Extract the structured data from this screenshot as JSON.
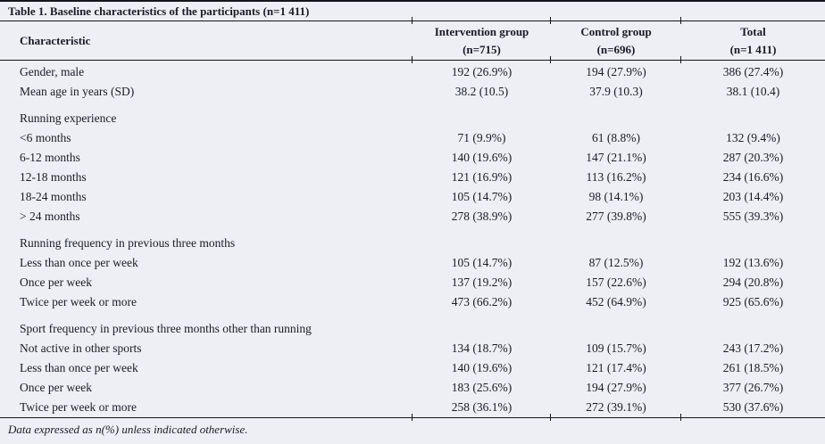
{
  "page": {
    "background_color": "#edeff5",
    "text_color": "#1b1b26",
    "rule_color": "#15151d"
  },
  "table": {
    "title": "Table 1. Baseline characteristics of the participants (n=1 411)",
    "columns": [
      {
        "label": "Characteristic",
        "sub": ""
      },
      {
        "label": "Intervention group",
        "sub": "(n=715)"
      },
      {
        "label": "Control group",
        "sub": "(n=696)"
      },
      {
        "label": "Total",
        "sub": "(n=1 411)"
      }
    ],
    "sections": [
      {
        "header": "",
        "rows": [
          [
            "Gender, male",
            "192 (26.9%)",
            "194 (27.9%)",
            "386 (27.4%)"
          ],
          [
            "Mean age in years (SD)",
            "38.2 (10.5)",
            "37.9 (10.3)",
            "38.1 (10.4)"
          ]
        ]
      },
      {
        "header": "Running experience",
        "rows": [
          [
            "<6 months",
            "71 (9.9%)",
            "61 (8.8%)",
            "132 (9.4%)"
          ],
          [
            "6-12 months",
            "140 (19.6%)",
            "147 (21.1%)",
            "287 (20.3%)"
          ],
          [
            "12-18 months",
            "121 (16.9%)",
            "113 (16.2%)",
            "234 (16.6%)"
          ],
          [
            "18-24 months",
            "105 (14.7%)",
            "98 (14.1%)",
            "203 (14.4%)"
          ],
          [
            "> 24 months",
            "278 (38.9%)",
            "277 (39.8%)",
            "555 (39.3%)"
          ]
        ]
      },
      {
        "header": "Running frequency in previous three months",
        "rows": [
          [
            "Less than once per week",
            "105 (14.7%)",
            "87 (12.5%)",
            "192 (13.6%)"
          ],
          [
            "Once per week",
            "137 (19.2%)",
            "157 (22.6%)",
            "294 (20.8%)"
          ],
          [
            "Twice per week or more",
            "473 (66.2%)",
            "452 (64.9%)",
            "925 (65.6%)"
          ]
        ]
      },
      {
        "header": "Sport frequency in previous three months other than running",
        "rows": [
          [
            "Not active in other sports",
            "134 (18.7%)",
            "109 (15.7%)",
            "243 (17.2%)"
          ],
          [
            "Less than once per week",
            "140 (19.6%)",
            "121 (17.4%)",
            "261 (18.5%)"
          ],
          [
            "Once per week",
            "183 (25.6%)",
            "194 (27.9%)",
            "377 (26.7%)"
          ],
          [
            "Twice per week or more",
            "258 (36.1%)",
            "272 (39.1%)",
            "530 (37.6%)"
          ]
        ]
      }
    ],
    "footnote": "Data expressed as n(%) unless indicated otherwise."
  }
}
